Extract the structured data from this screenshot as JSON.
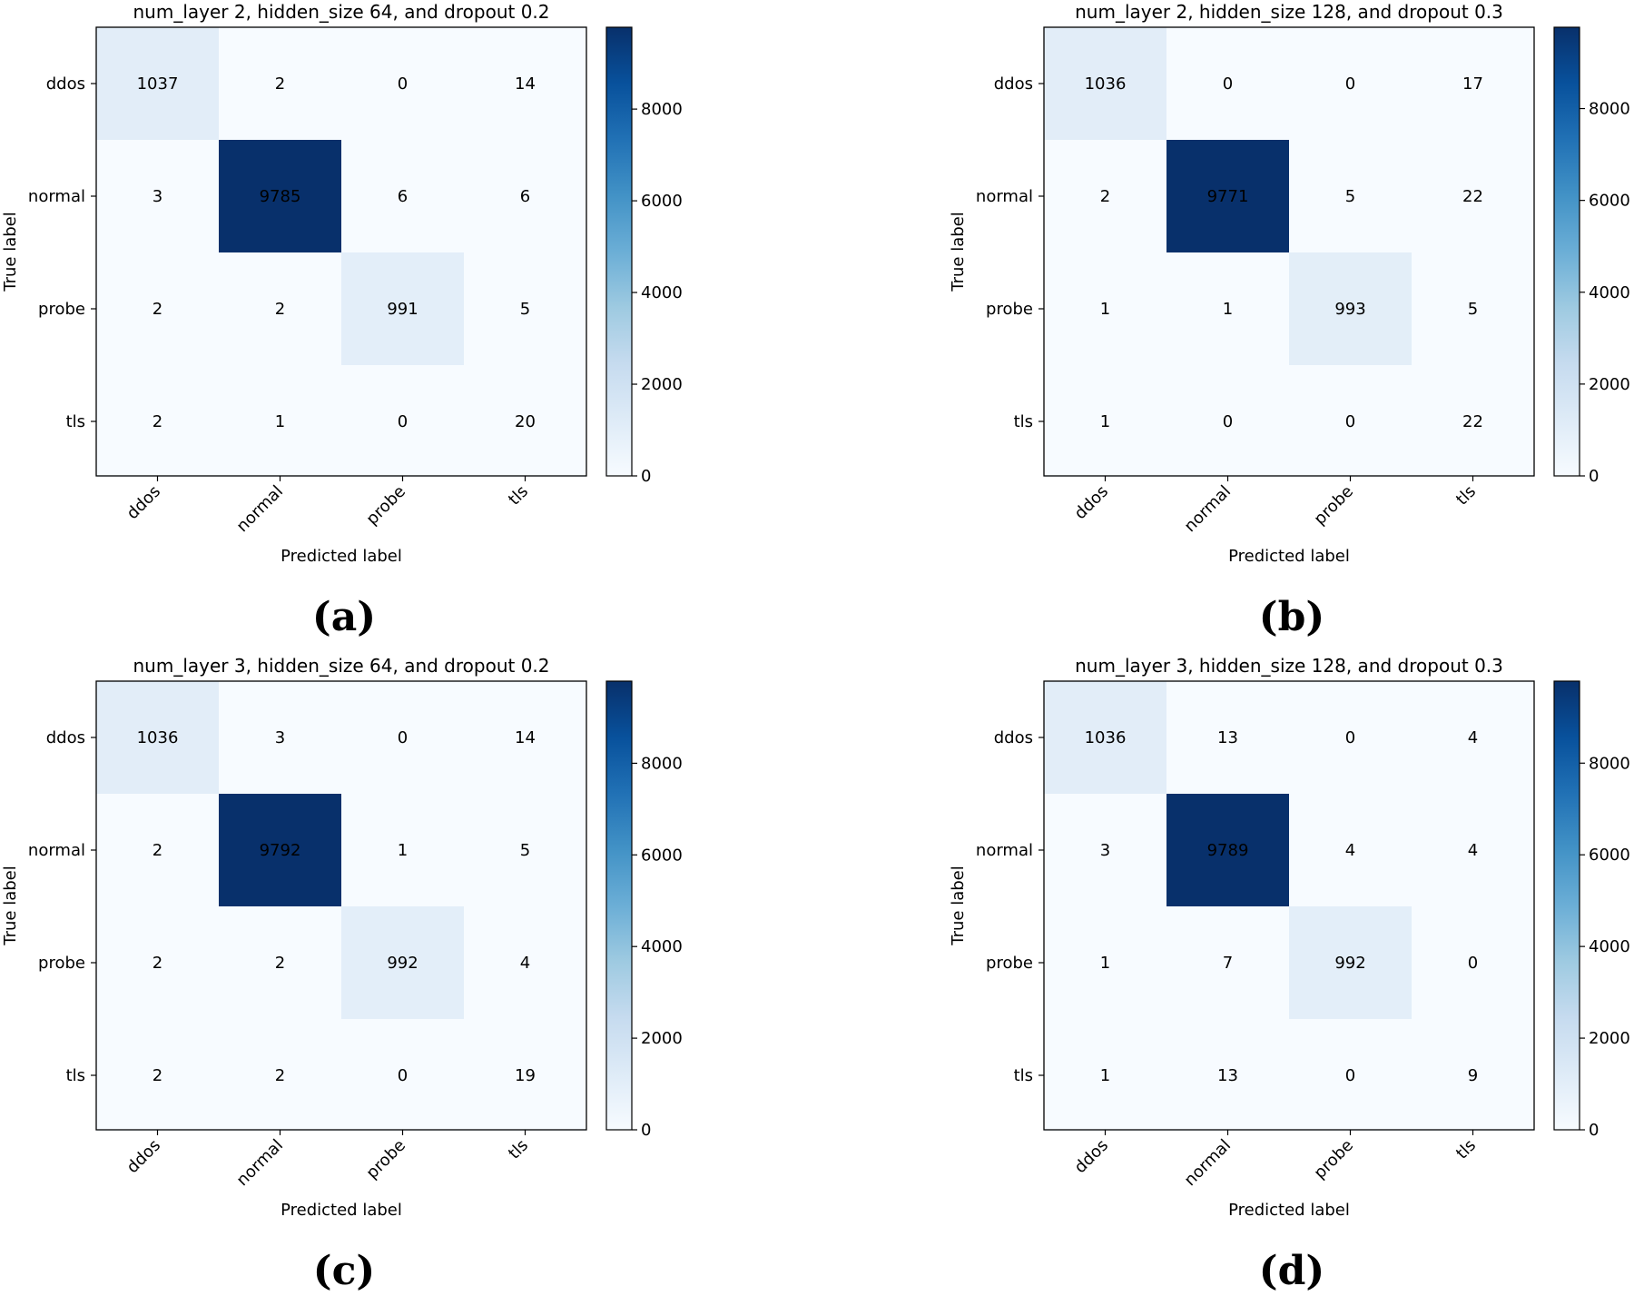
{
  "chart_data": [
    {
      "type": "heatmap",
      "panel_label": "(a)",
      "title": "num_layer 2, hidden_size 64, and dropout 0.2",
      "xlabel": "Predicted label",
      "ylabel": "True label",
      "x_ticks": [
        "ddos",
        "normal",
        "probe",
        "tls"
      ],
      "y_ticks": [
        "ddos",
        "normal",
        "probe",
        "tls"
      ],
      "matrix": [
        [
          1037,
          2,
          0,
          14
        ],
        [
          3,
          9785,
          6,
          6
        ],
        [
          2,
          2,
          991,
          5
        ],
        [
          2,
          1,
          0,
          20
        ]
      ],
      "colorbar": {
        "cmap": "Blues",
        "min": 0,
        "max": 9785,
        "ticks": [
          0,
          2000,
          4000,
          6000,
          8000
        ]
      }
    },
    {
      "type": "heatmap",
      "panel_label": "(b)",
      "title": "num_layer 2, hidden_size 128, and dropout 0.3",
      "xlabel": "Predicted label",
      "ylabel": "True label",
      "x_ticks": [
        "ddos",
        "normal",
        "probe",
        "tls"
      ],
      "y_ticks": [
        "ddos",
        "normal",
        "probe",
        "tls"
      ],
      "matrix": [
        [
          1036,
          0,
          0,
          17
        ],
        [
          2,
          9771,
          5,
          22
        ],
        [
          1,
          1,
          993,
          5
        ],
        [
          1,
          0,
          0,
          22
        ]
      ],
      "colorbar": {
        "cmap": "Blues",
        "min": 0,
        "max": 9771,
        "ticks": [
          0,
          2000,
          4000,
          6000,
          8000
        ]
      }
    },
    {
      "type": "heatmap",
      "panel_label": "(c)",
      "title": "num_layer 3, hidden_size 64, and dropout 0.2",
      "xlabel": "Predicted label",
      "ylabel": "True label",
      "x_ticks": [
        "ddos",
        "normal",
        "probe",
        "tls"
      ],
      "y_ticks": [
        "ddos",
        "normal",
        "probe",
        "tls"
      ],
      "matrix": [
        [
          1036,
          3,
          0,
          14
        ],
        [
          2,
          9792,
          1,
          5
        ],
        [
          2,
          2,
          992,
          4
        ],
        [
          2,
          2,
          0,
          19
        ]
      ],
      "colorbar": {
        "cmap": "Blues",
        "min": 0,
        "max": 9792,
        "ticks": [
          0,
          2000,
          4000,
          6000,
          8000
        ]
      }
    },
    {
      "type": "heatmap",
      "panel_label": "(d)",
      "title": "num_layer 3, hidden_size 128, and dropout 0.3",
      "xlabel": "Predicted label",
      "ylabel": "True label",
      "x_ticks": [
        "ddos",
        "normal",
        "probe",
        "tls"
      ],
      "y_ticks": [
        "ddos",
        "normal",
        "probe",
        "tls"
      ],
      "matrix": [
        [
          1036,
          13,
          0,
          4
        ],
        [
          3,
          9789,
          4,
          4
        ],
        [
          1,
          7,
          992,
          0
        ],
        [
          1,
          13,
          0,
          9
        ]
      ],
      "colorbar": {
        "cmap": "Blues",
        "min": 0,
        "max": 9789,
        "ticks": [
          0,
          2000,
          4000,
          6000,
          8000
        ]
      }
    }
  ]
}
